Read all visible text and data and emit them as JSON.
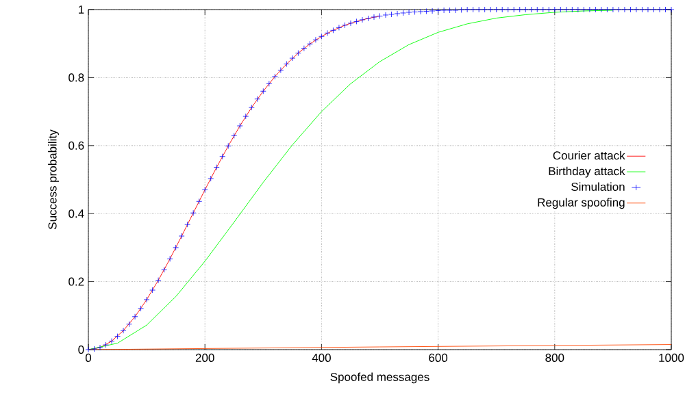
{
  "chart_data": {
    "type": "line",
    "xlabel": "Spoofed messages",
    "ylabel": "Success probability",
    "xlim": [
      0,
      1000
    ],
    "ylim": [
      0,
      1
    ],
    "xticks": [
      0,
      200,
      400,
      600,
      800,
      1000
    ],
    "yticks": [
      0,
      0.2,
      0.4,
      0.6,
      0.8,
      1
    ],
    "grid": true,
    "legend": "right",
    "series": [
      {
        "name": "Courier attack",
        "color": "#ff0000",
        "x": [
          0,
          20,
          40,
          60,
          80,
          100,
          120,
          140,
          160,
          180,
          200,
          220,
          240,
          260,
          280,
          300,
          320,
          340,
          360,
          380,
          400,
          420,
          440,
          460,
          480,
          500
        ],
        "values": [
          0,
          0.006,
          0.025,
          0.056,
          0.097,
          0.147,
          0.204,
          0.267,
          0.334,
          0.402,
          0.47,
          0.536,
          0.599,
          0.658,
          0.712,
          0.76,
          0.803,
          0.84,
          0.872,
          0.899,
          0.921,
          0.939,
          0.954,
          0.965,
          0.974,
          0.981
        ]
      },
      {
        "name": "Birthday attack",
        "color": "#00ff00",
        "x": [
          0,
          50,
          100,
          150,
          200,
          250,
          300,
          350,
          400,
          450,
          500,
          550,
          600,
          650,
          700,
          750,
          800,
          850,
          900
        ],
        "values": [
          0,
          0.019,
          0.072,
          0.156,
          0.26,
          0.375,
          0.492,
          0.602,
          0.7,
          0.782,
          0.847,
          0.897,
          0.933,
          0.958,
          0.975,
          0.985,
          0.992,
          0.996,
          0.998
        ]
      },
      {
        "name": "Simulation",
        "type": "scatter",
        "marker": "cross",
        "color": "#0000ff",
        "x": [
          0,
          10,
          20,
          30,
          40,
          50,
          60,
          70,
          80,
          90,
          100,
          110,
          120,
          130,
          140,
          150,
          160,
          170,
          180,
          190,
          200,
          210,
          220,
          230,
          240,
          250,
          260,
          270,
          280,
          290,
          300,
          310,
          320,
          330,
          340,
          350,
          360,
          370,
          380,
          390,
          400,
          410,
          420,
          430,
          440,
          450,
          460,
          470,
          480,
          490,
          500,
          510,
          520,
          530,
          540,
          550,
          560,
          570,
          580,
          590,
          600,
          610,
          620,
          630,
          640,
          650,
          660,
          670,
          680,
          690,
          700,
          710,
          720,
          730,
          740,
          750,
          760,
          770,
          780,
          790,
          800,
          810,
          820,
          830,
          840,
          850,
          860,
          870,
          880,
          890,
          900,
          910,
          920,
          930,
          940,
          950,
          960,
          970,
          980,
          990,
          1000
        ],
        "values": [
          0,
          0.002,
          0.006,
          0.014,
          0.025,
          0.039,
          0.056,
          0.075,
          0.097,
          0.121,
          0.147,
          0.175,
          0.204,
          0.235,
          0.267,
          0.3,
          0.334,
          0.368,
          0.402,
          0.436,
          0.47,
          0.503,
          0.536,
          0.568,
          0.599,
          0.629,
          0.658,
          0.686,
          0.712,
          0.737,
          0.76,
          0.782,
          0.803,
          0.822,
          0.84,
          0.857,
          0.872,
          0.886,
          0.899,
          0.911,
          0.921,
          0.931,
          0.939,
          0.947,
          0.954,
          0.96,
          0.965,
          0.97,
          0.974,
          0.978,
          0.981,
          0.984,
          0.986,
          0.988,
          0.99,
          0.992,
          0.993,
          0.994,
          0.995,
          0.996,
          0.997,
          0.998,
          0.998,
          0.998,
          0.999,
          1,
          1,
          1,
          1,
          1,
          1,
          1,
          1,
          1,
          1,
          1,
          1,
          1,
          1,
          1,
          1,
          1,
          1,
          1,
          1,
          1,
          1,
          1,
          1,
          1,
          1,
          1,
          1,
          1,
          1,
          1,
          1,
          1,
          1,
          1,
          1
        ]
      },
      {
        "name": "Regular spoofing",
        "color": "#ff4500",
        "x": [
          0,
          500,
          1000
        ],
        "values": [
          0,
          0.008,
          0.015
        ]
      }
    ]
  }
}
